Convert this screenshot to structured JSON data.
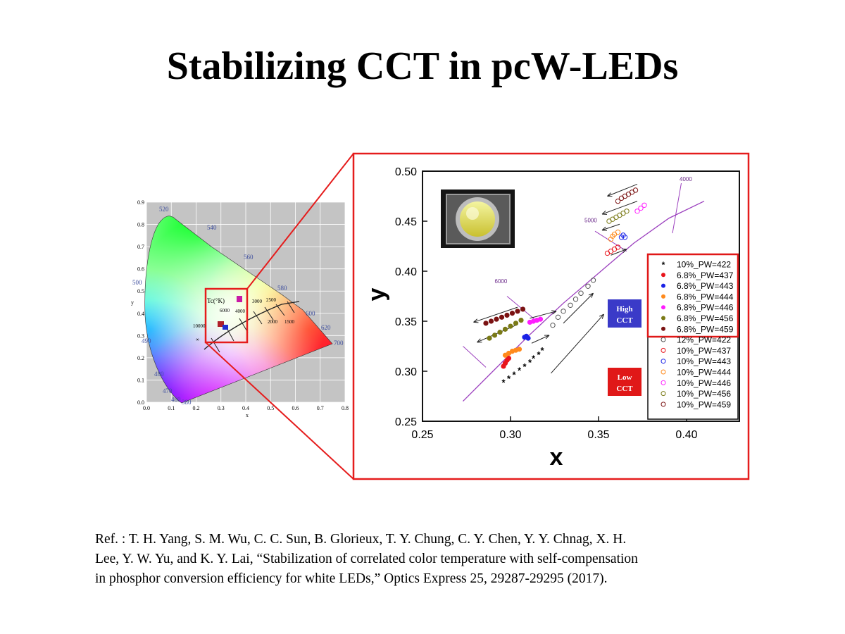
{
  "slide": {
    "title": "Stabilizing CCT in pcW-LEDs",
    "reference_lines": [
      "Ref. : T. H. Yang, S. M. Wu, C. C. Sun, B. Glorieux, T. Y. Chung, C. Y. Chen, Y. Y. Chnag, X. H.",
      "Lee, Y. W. Yu, and K. Y. Lai, “Stabilization of correlated color temperature with self-compensation",
      "in phosphor conversion efficiency for white LEDs,” Optics Express 25, 29287-29295 (2017)."
    ]
  },
  "cie_diagram": {
    "y_ticks": [
      "0.0",
      "0.1",
      "0.2",
      "0.3",
      "0.4",
      "0.5",
      "0.6",
      "0.7",
      "0.8",
      "0.9"
    ],
    "x_ticks": [
      "0.0",
      "0.1",
      "0.2",
      "0.3",
      "0.4",
      "0.5",
      "0.6",
      "0.7",
      "0.8"
    ],
    "xlabel": "x",
    "ylabel": "y",
    "wavelength_labels": [
      "520",
      "540",
      "560",
      "580",
      "600",
      "620",
      "700",
      "500",
      "490",
      "480",
      "470",
      "460",
      "380"
    ],
    "cct_header": "Tc(°K)",
    "cct_labels": [
      "10000",
      "6000",
      "4000",
      "3000",
      "2500",
      "2000",
      "1500",
      "∞"
    ]
  },
  "chart_data": {
    "type": "scatter",
    "xlabel": "x",
    "ylabel": "y",
    "xlim": [
      0.25,
      0.43
    ],
    "ylim": [
      0.25,
      0.5
    ],
    "x_ticks": [
      "0.25",
      "0.30",
      "0.35",
      "0.40"
    ],
    "y_ticks": [
      "0.25",
      "0.30",
      "0.35",
      "0.40",
      "0.45",
      "0.50"
    ],
    "locus": [
      [
        0.273,
        0.27
      ],
      [
        0.29,
        0.3
      ],
      [
        0.31,
        0.335
      ],
      [
        0.33,
        0.368
      ],
      [
        0.35,
        0.398
      ],
      [
        0.37,
        0.428
      ],
      [
        0.39,
        0.453
      ],
      [
        0.41,
        0.47
      ]
    ],
    "isotherm_labels": [
      "6000",
      "5000",
      "4000"
    ],
    "boxes": {
      "high": "High CCT",
      "low": "Low CCT"
    },
    "legend_position": "right",
    "series": [
      {
        "name": "10%_PW=422",
        "marker": "asterisk",
        "color": "#000000",
        "points": [
          [
            0.296,
            0.289
          ],
          [
            0.299,
            0.293
          ],
          [
            0.302,
            0.297
          ],
          [
            0.305,
            0.301
          ],
          [
            0.308,
            0.305
          ],
          [
            0.311,
            0.309
          ],
          [
            0.313,
            0.313
          ],
          [
            0.316,
            0.317
          ],
          [
            0.318,
            0.321
          ]
        ]
      },
      {
        "name": "6.8%_PW=437",
        "marker": "filled",
        "color": "#e8141b",
        "points": [
          [
            0.296,
            0.305
          ],
          [
            0.297,
            0.308
          ],
          [
            0.298,
            0.311
          ],
          [
            0.299,
            0.313
          ]
        ]
      },
      {
        "name": "6.8%_PW=443",
        "marker": "filled",
        "color": "#1a22e6",
        "points": [
          [
            0.308,
            0.334
          ],
          [
            0.309,
            0.335
          ],
          [
            0.31,
            0.333
          ]
        ]
      },
      {
        "name": "6.8%_PW=444",
        "marker": "filled",
        "color": "#ff8a1c",
        "points": [
          [
            0.297,
            0.316
          ],
          [
            0.299,
            0.318
          ],
          [
            0.301,
            0.32
          ],
          [
            0.303,
            0.321
          ],
          [
            0.305,
            0.322
          ]
        ]
      },
      {
        "name": "6.8%_PW=446",
        "marker": "filled",
        "color": "#ff1cff",
        "points": [
          [
            0.311,
            0.349
          ],
          [
            0.313,
            0.35
          ],
          [
            0.315,
            0.351
          ],
          [
            0.317,
            0.352
          ]
        ]
      },
      {
        "name": "6.8%_PW=456",
        "marker": "filled",
        "color": "#7a7a16",
        "points": [
          [
            0.288,
            0.333
          ],
          [
            0.291,
            0.336
          ],
          [
            0.294,
            0.339
          ],
          [
            0.297,
            0.342
          ],
          [
            0.3,
            0.345
          ],
          [
            0.303,
            0.348
          ],
          [
            0.306,
            0.351
          ]
        ]
      },
      {
        "name": "6.8%_PW=459",
        "marker": "filled",
        "color": "#7a1212",
        "points": [
          [
            0.286,
            0.348
          ],
          [
            0.289,
            0.35
          ],
          [
            0.292,
            0.352
          ],
          [
            0.295,
            0.354
          ],
          [
            0.298,
            0.356
          ],
          [
            0.301,
            0.358
          ],
          [
            0.304,
            0.36
          ],
          [
            0.307,
            0.362
          ]
        ]
      },
      {
        "name": "12%_PW=422",
        "marker": "open",
        "color": "#555555",
        "points": [
          [
            0.324,
            0.346
          ],
          [
            0.327,
            0.354
          ],
          [
            0.33,
            0.36
          ],
          [
            0.334,
            0.366
          ],
          [
            0.337,
            0.372
          ],
          [
            0.34,
            0.378
          ],
          [
            0.344,
            0.385
          ],
          [
            0.347,
            0.391
          ]
        ]
      },
      {
        "name": "10%_PW=437",
        "marker": "open",
        "color": "#e8141b",
        "points": [
          [
            0.355,
            0.418
          ],
          [
            0.357,
            0.42
          ],
          [
            0.359,
            0.422
          ],
          [
            0.361,
            0.424
          ]
        ]
      },
      {
        "name": "10%_PW=443",
        "marker": "open",
        "color": "#1a22e6",
        "points": [
          [
            0.363,
            0.434
          ],
          [
            0.364,
            0.436
          ],
          [
            0.365,
            0.434
          ]
        ]
      },
      {
        "name": "10%_PW=444",
        "marker": "open",
        "color": "#ff8a1c",
        "points": [
          [
            0.357,
            0.432
          ],
          [
            0.358,
            0.435
          ],
          [
            0.359,
            0.437
          ],
          [
            0.361,
            0.439
          ]
        ]
      },
      {
        "name": "10%_PW=446",
        "marker": "open",
        "color": "#ff1cff",
        "points": [
          [
            0.372,
            0.46
          ],
          [
            0.374,
            0.463
          ],
          [
            0.376,
            0.466
          ]
        ]
      },
      {
        "name": "10%_PW=456",
        "marker": "open",
        "color": "#7a7a16",
        "points": [
          [
            0.356,
            0.45
          ],
          [
            0.358,
            0.452
          ],
          [
            0.36,
            0.454
          ],
          [
            0.362,
            0.456
          ],
          [
            0.364,
            0.458
          ],
          [
            0.366,
            0.46
          ]
        ]
      },
      {
        "name": "10%_PW=459",
        "marker": "open",
        "color": "#7a1212",
        "points": [
          [
            0.361,
            0.47
          ],
          [
            0.363,
            0.473
          ],
          [
            0.365,
            0.475
          ],
          [
            0.367,
            0.477
          ],
          [
            0.369,
            0.479
          ],
          [
            0.371,
            0.481
          ]
        ]
      }
    ]
  }
}
